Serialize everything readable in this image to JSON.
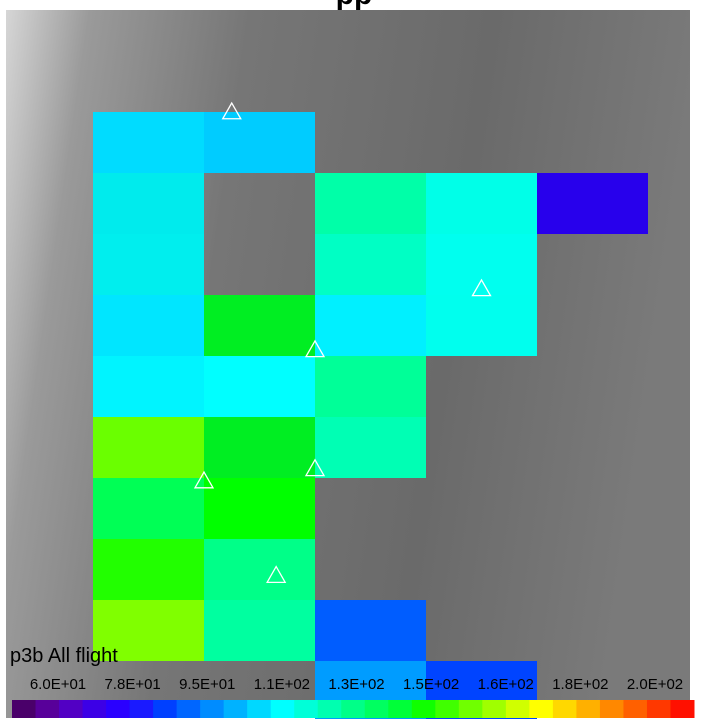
{
  "title": "pp",
  "plot_label": "p3b All flight",
  "chart_data": {
    "type": "heatmap",
    "title": "pp",
    "grid": false,
    "legend": "bottom colorbar",
    "colorbar": {
      "min": 60,
      "max": 200,
      "tick_labels": [
        "6.0E+01",
        "7.8E+01",
        "9.5E+01",
        "1.1E+02",
        "1.3E+02",
        "1.5E+02",
        "1.6E+02",
        "1.8E+02",
        "2.0E+02"
      ],
      "colors": [
        "#4a006a",
        "#58009a",
        "#5200c4",
        "#3c00e6",
        "#2a00ff",
        "#1a1aff",
        "#0040ff",
        "#0066ff",
        "#008cff",
        "#00b2ff",
        "#00d8ff",
        "#00ffff",
        "#00ffd8",
        "#00ffb0",
        "#00ff88",
        "#00ff60",
        "#00ff38",
        "#10ff00",
        "#40ff00",
        "#70ff00",
        "#a0ff00",
        "#d0ff00",
        "#ffff00",
        "#ffd800",
        "#ffb000",
        "#ff8800",
        "#ff6000",
        "#ff3800",
        "#ff1000"
      ]
    },
    "columns": 6,
    "rows": 11,
    "cells": [
      {
        "col": 0,
        "row": 0,
        "color": "#00dcff"
      },
      {
        "col": 1,
        "row": 0,
        "color": "#00ccff"
      },
      {
        "col": 0,
        "row": 1,
        "color": "#00ebed"
      },
      {
        "col": 2,
        "row": 1,
        "color": "#00ffa8"
      },
      {
        "col": 3,
        "row": 1,
        "color": "#00ffe8"
      },
      {
        "col": 4,
        "row": 1,
        "color": "#2800ec"
      },
      {
        "col": 0,
        "row": 2,
        "color": "#00eeee"
      },
      {
        "col": 2,
        "row": 2,
        "color": "#00ffc4"
      },
      {
        "col": 3,
        "row": 2,
        "color": "#00ffef"
      },
      {
        "col": 0,
        "row": 3,
        "color": "#00e6ff"
      },
      {
        "col": 1,
        "row": 3,
        "color": "#00ee22"
      },
      {
        "col": 2,
        "row": 3,
        "color": "#00f0ff"
      },
      {
        "col": 3,
        "row": 3,
        "color": "#00ffee"
      },
      {
        "col": 0,
        "row": 4,
        "color": "#00f4ff"
      },
      {
        "col": 1,
        "row": 4,
        "color": "#00ffff"
      },
      {
        "col": 2,
        "row": 4,
        "color": "#00ff98"
      },
      {
        "col": 0,
        "row": 5,
        "color": "#6aff00"
      },
      {
        "col": 1,
        "row": 5,
        "color": "#00ee22"
      },
      {
        "col": 2,
        "row": 5,
        "color": "#00ffb4"
      },
      {
        "col": 0,
        "row": 6,
        "color": "#00ff55"
      },
      {
        "col": 1,
        "row": 6,
        "color": "#00ff00"
      },
      {
        "col": 0,
        "row": 7,
        "color": "#22ff00"
      },
      {
        "col": 1,
        "row": 7,
        "color": "#00ff88"
      },
      {
        "col": 0,
        "row": 8,
        "color": "#80ff00"
      },
      {
        "col": 1,
        "row": 8,
        "color": "#00ffa0"
      },
      {
        "col": 2,
        "row": 8,
        "color": "#005dff"
      },
      {
        "col": 2,
        "row": 9,
        "color": "#009cff"
      },
      {
        "col": 3,
        "row": 9,
        "color": "#0044ff"
      }
    ],
    "markers": [
      {
        "col": 1.25,
        "row": 0.0
      },
      {
        "col": 3.5,
        "row": 2.9
      },
      {
        "col": 2.0,
        "row": 3.9
      },
      {
        "col": 1.0,
        "row": 6.05
      },
      {
        "col": 2.0,
        "row": 5.85
      },
      {
        "col": 1.65,
        "row": 7.6
      }
    ]
  }
}
